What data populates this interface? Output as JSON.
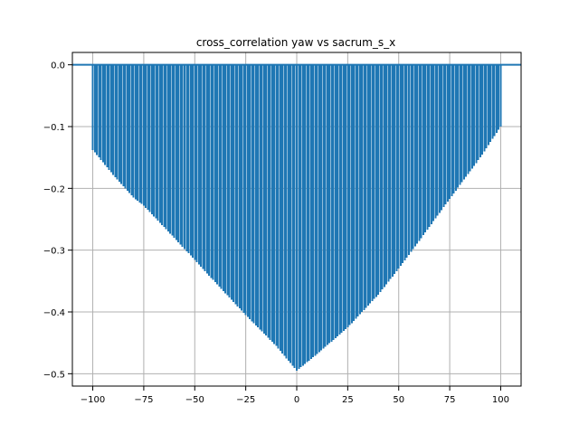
{
  "chart_data": {
    "type": "bar",
    "subtype": "stem",
    "title": "cross_correlation yaw vs sacrum_s_x",
    "xlabel": "",
    "ylabel": "",
    "xlim": [
      -110,
      110
    ],
    "ylim": [
      -0.52,
      0.02
    ],
    "grid": true,
    "legend": "none",
    "xticks": [
      -100,
      -75,
      -50,
      -25,
      0,
      25,
      50,
      75,
      100
    ],
    "xtick_labels": [
      "−100",
      "−75",
      "−50",
      "−25",
      "0",
      "25",
      "50",
      "75",
      "100"
    ],
    "yticks": [
      0.0,
      -0.1,
      -0.2,
      -0.3,
      -0.4,
      -0.5
    ],
    "ytick_labels": [
      "0.0",
      "−0.1",
      "−0.2",
      "−0.3",
      "−0.4",
      "−0.5"
    ],
    "baseline": 0.0,
    "color": "#1f77b4",
    "series": [
      {
        "x_range": [
          -100,
          100
        ],
        "x_step": 1,
        "profile_points": [
          {
            "x": -100,
            "y": -0.138
          },
          {
            "x": -90,
            "y": -0.178
          },
          {
            "x": -80,
            "y": -0.215
          },
          {
            "x": -75,
            "y": -0.228
          },
          {
            "x": -60,
            "y": -0.28
          },
          {
            "x": -50,
            "y": -0.316
          },
          {
            "x": -40,
            "y": -0.352
          },
          {
            "x": -25,
            "y": -0.405
          },
          {
            "x": -10,
            "y": -0.455
          },
          {
            "x": 0,
            "y": -0.495
          },
          {
            "x": 10,
            "y": -0.468
          },
          {
            "x": 25,
            "y": -0.425
          },
          {
            "x": 40,
            "y": -0.372
          },
          {
            "x": 50,
            "y": -0.33
          },
          {
            "x": 60,
            "y": -0.285
          },
          {
            "x": 75,
            "y": -0.217
          },
          {
            "x": 90,
            "y": -0.15
          },
          {
            "x": 100,
            "y": -0.1
          }
        ]
      }
    ]
  }
}
